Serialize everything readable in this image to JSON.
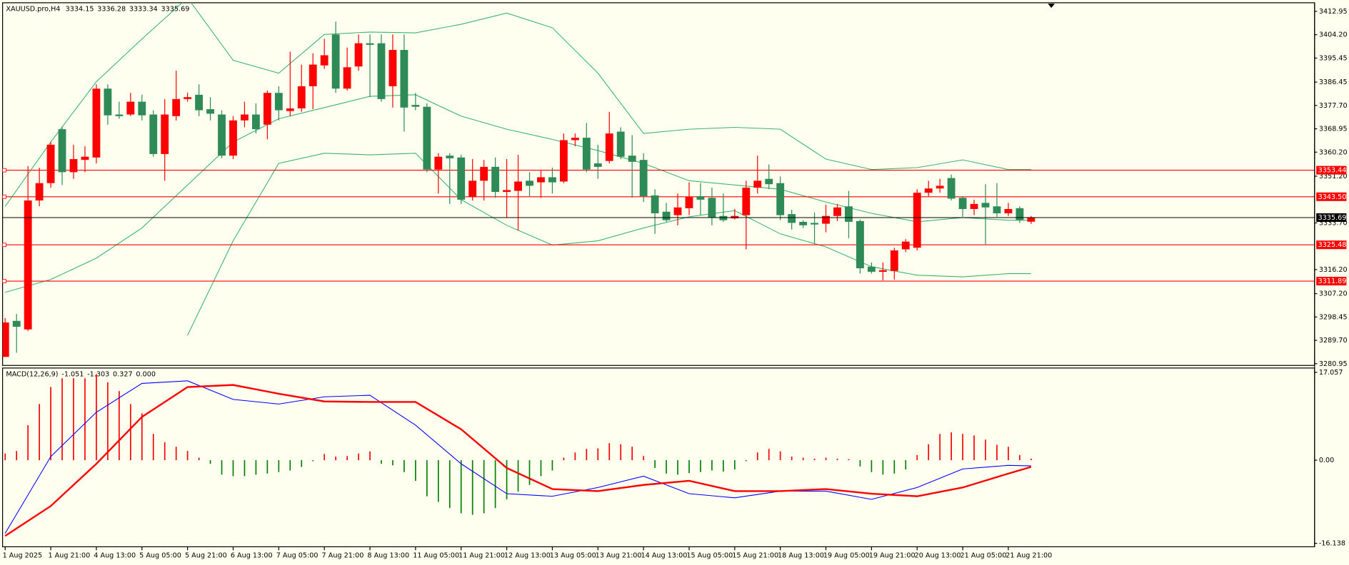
{
  "chart_data": [
    {
      "type": "candlestick",
      "symbol": "XAUUSD.pro,H4",
      "categories": [
        "1 Aug 2025",
        null,
        null,
        null,
        "1 Aug 21:00",
        null,
        null,
        null,
        "4 Aug 13:00",
        null,
        null,
        null,
        "5 Aug 05:00",
        null,
        null,
        null,
        "5 Aug 21:00",
        null,
        null,
        null,
        "6 Aug 13:00",
        null,
        null,
        null,
        "7 Aug 05:00",
        null,
        null,
        null,
        "7 Aug 21:00",
        null,
        null,
        null,
        "8 Aug 13:00",
        null,
        null,
        null,
        "11 Aug 05:00",
        null,
        null,
        null,
        "11 Aug 21:00",
        null,
        null,
        null,
        "12 Aug 13:00",
        null,
        null,
        null,
        "13 Aug 05:00",
        null,
        null,
        null,
        "13 Aug 21:00",
        null,
        null,
        null,
        "14 Aug 13:00",
        null,
        null,
        null,
        "15 Aug 05:00",
        null,
        null,
        null,
        "15 Aug 21:00",
        null,
        null,
        null,
        "18 Aug 13:00",
        null,
        null,
        null,
        "19 Aug 05:00",
        null,
        null,
        null,
        "19 Aug 21:00",
        null,
        null,
        null,
        "20 Aug 13:00",
        null,
        null,
        null,
        "21 Aug 05:00",
        null,
        null,
        null,
        "21 Aug 21:00",
        null,
        null
      ],
      "open": [
        3283.5,
        3297.0,
        3293.8,
        3342.1,
        3348.6,
        3368.8,
        3352.7,
        3357.3,
        3358.2,
        3384.0,
        3374.3,
        3374.3,
        3379.1,
        3374.3,
        3359.5,
        3373.7,
        3380.1,
        3381.7,
        3376.3,
        3374.3,
        3358.9,
        3372.1,
        3374.3,
        3370.5,
        3382.4,
        3375.6,
        3376.6,
        3384.9,
        3392.7,
        3404.3,
        3384.0,
        3392.3,
        3401.0,
        3401.0,
        3384.9,
        3398.5,
        3377.9,
        3377.2,
        3353.7,
        3358.9,
        3358.2,
        3343.4,
        3349.5,
        3354.7,
        3345.3,
        3345.7,
        3349.5,
        3348.9,
        3350.8,
        3349.2,
        3364.7,
        3365.6,
        3356.0,
        3356.9,
        3367.9,
        3358.9,
        3357.3,
        3344.0,
        3337.9,
        3336.6,
        3339.2,
        3343.7,
        3343.1,
        3336.3,
        3335.4,
        3336.6,
        3346.9,
        3350.2,
        3348.6,
        3337.0,
        3334.1,
        3333.7,
        3333.4,
        3336.3,
        3339.9,
        3334.4,
        3317.3,
        3315.4,
        3315.7,
        3323.8,
        3324.4,
        3345.0,
        3346.6,
        3350.5,
        3343.1,
        3338.9,
        3341.2,
        3339.9,
        3337.3,
        3339.2,
        3334.15
      ],
      "high": [
        3298.0,
        3299.6,
        3355.0,
        3354.4,
        3364.0,
        3369.5,
        3363.0,
        3362.4,
        3385.6,
        3385.6,
        3379.1,
        3382.4,
        3381.7,
        3375.9,
        3380.1,
        3390.7,
        3382.4,
        3385.6,
        3380.8,
        3375.9,
        3373.7,
        3379.1,
        3378.5,
        3383.3,
        3384.9,
        3397.8,
        3393.0,
        3397.2,
        3402.6,
        3409.1,
        3399.4,
        3404.3,
        3404.3,
        3404.3,
        3404.3,
        3404.3,
        3382.4,
        3378.5,
        3359.8,
        3359.8,
        3359.2,
        3357.6,
        3357.3,
        3358.2,
        3357.6,
        3359.2,
        3352.7,
        3353.4,
        3354.4,
        3367.2,
        3367.2,
        3371.1,
        3363.0,
        3375.3,
        3369.5,
        3366.6,
        3359.8,
        3346.3,
        3341.2,
        3344.7,
        3348.9,
        3348.6,
        3346.9,
        3344.7,
        3338.9,
        3349.5,
        3358.9,
        3355.6,
        3351.1,
        3338.6,
        3334.7,
        3337.6,
        3340.5,
        3340.8,
        3345.7,
        3335.0,
        3318.9,
        3318.9,
        3324.4,
        3327.6,
        3346.3,
        3349.5,
        3350.2,
        3351.8,
        3343.7,
        3342.4,
        3348.2,
        3348.6,
        3341.2,
        3339.9,
        3336.28
      ],
      "low": [
        3283.5,
        3285.1,
        3293.2,
        3339.9,
        3346.9,
        3347.9,
        3350.2,
        3352.7,
        3356.0,
        3370.5,
        3372.7,
        3373.7,
        3372.1,
        3358.5,
        3349.5,
        3372.1,
        3379.1,
        3373.7,
        3372.1,
        3357.9,
        3357.6,
        3369.5,
        3367.2,
        3365.0,
        3372.1,
        3373.7,
        3375.3,
        3376.3,
        3391.4,
        3382.4,
        3383.3,
        3390.7,
        3380.8,
        3379.1,
        3376.9,
        3367.9,
        3375.9,
        3352.7,
        3344.7,
        3340.8,
        3340.8,
        3342.1,
        3342.1,
        3343.1,
        3335.7,
        3330.8,
        3343.7,
        3343.1,
        3344.7,
        3348.6,
        3362.4,
        3352.7,
        3350.2,
        3356.0,
        3357.6,
        3343.1,
        3341.5,
        3329.6,
        3334.1,
        3332.8,
        3336.6,
        3336.6,
        3332.8,
        3334.1,
        3335.0,
        3323.8,
        3344.7,
        3346.3,
        3334.7,
        3331.2,
        3331.8,
        3326.0,
        3330.2,
        3334.4,
        3328.0,
        3314.7,
        3314.7,
        3312.2,
        3312.5,
        3322.8,
        3323.4,
        3343.7,
        3345.0,
        3342.1,
        3336.0,
        3336.6,
        3325.4,
        3336.0,
        3336.3,
        3333.7,
        3333.34
      ],
      "close": [
        3296.4,
        3294.8,
        3342.1,
        3348.6,
        3363.0,
        3352.7,
        3357.6,
        3358.5,
        3384.0,
        3374.0,
        3373.7,
        3379.1,
        3374.0,
        3359.5,
        3374.3,
        3380.1,
        3380.8,
        3375.9,
        3374.6,
        3358.9,
        3372.1,
        3374.3,
        3368.8,
        3382.4,
        3375.9,
        3376.6,
        3384.9,
        3393.0,
        3396.5,
        3384.0,
        3392.0,
        3401.0,
        3400.4,
        3380.1,
        3398.5,
        3376.9,
        3377.2,
        3353.7,
        3358.5,
        3357.9,
        3342.4,
        3349.5,
        3354.7,
        3345.3,
        3346.0,
        3349.2,
        3347.6,
        3350.8,
        3348.9,
        3364.7,
        3365.6,
        3353.7,
        3354.7,
        3367.2,
        3358.5,
        3356.6,
        3343.7,
        3337.3,
        3334.7,
        3339.5,
        3343.4,
        3342.4,
        3335.7,
        3334.7,
        3336.3,
        3346.9,
        3349.5,
        3348.2,
        3336.6,
        3333.7,
        3332.8,
        3333.1,
        3336.3,
        3339.5,
        3334.1,
        3316.7,
        3315.4,
        3316.0,
        3323.4,
        3326.7,
        3345.0,
        3346.6,
        3347.6,
        3342.8,
        3338.9,
        3340.8,
        3339.5,
        3337.3,
        3338.9,
        3334.7,
        3335.69
      ],
      "up_color": "#ff0000",
      "down_color": "#2e8b57",
      "ylim": [
        3280.95,
        3412.95
      ],
      "yticks": [
        3412.95,
        {
          "value": 3404.2,
          "label": "3404.20"
        },
        3395.45,
        3386.45,
        {
          "value": 3377.7,
          "label": "3377.70"
        },
        3368.95,
        {
          "value": 3360.2,
          "label": "3360.20"
        },
        {
          "value": 3351.2,
          "label": "3351.20"
        },
        {
          "value": 3333.7,
          "label": "3333.70"
        },
        {
          "value": 3316.2,
          "label": "3316.20"
        },
        {
          "value": 3307.2,
          "label": "3307.20"
        },
        3298.45,
        {
          "value": 3289.7,
          "label": "3289.70"
        },
        3280.95
      ],
      "levels": [
        3353.44,
        {
          "value": 3343.5,
          "label": "3343.50"
        },
        3325.48,
        3311.89
      ],
      "level_color": "#ff0000",
      "bands": {
        "color": "#3cb371",
        "x": [
          0,
          4,
          8,
          12,
          16,
          20,
          24,
          28,
          32,
          36,
          40,
          44,
          48,
          52,
          56,
          60,
          64,
          68,
          72,
          76,
          80,
          84,
          88,
          90
        ],
        "series": [
          {
            "values": [
              3339.9,
              3364.0,
              3386.6,
              3402.6,
              3418.0,
              3394.6,
              3389.8,
              3404.3,
              3405.2,
              3404.9,
              3408.1,
              3412.3,
              3406.8,
              3389.8,
              3367.2,
              3368.8,
              3369.5,
              3368.8,
              3357.6,
              3353.7,
              3354.4,
              3357.3,
              3353.7,
              3353.7
            ]
          },
          {
            "values": [
              3307.7,
              3312.5,
              3320.5,
              3331.8,
              3347.9,
              3364.0,
              3372.7,
              3376.9,
              3381.1,
              3381.7,
              3373.7,
              3368.8,
              3365.0,
              3360.8,
              3356.0,
              3349.5,
              3347.9,
              3346.3,
              3341.5,
              3337.3,
              3334.1,
              3335.7,
              3334.7,
              3334.7
            ]
          },
          {
            "values": [
              null,
              null,
              null,
              null,
              3291.6,
              3327.0,
              3356.0,
              3359.8,
              3359.2,
              3359.8,
              3342.4,
              3332.8,
              3325.4,
              3327.0,
              3331.8,
              3336.0,
              3338.3,
              3329.6,
              3324.7,
              3317.3,
              3314.1,
              3313.5,
              3314.7,
              3314.7
            ]
          }
        ]
      }
    },
    {
      "type": "macd",
      "title": "MACD(12,26,9)",
      "readout": [
        -1.051,
        -1.303,
        0.327,
        {
          "value": 0,
          "label": "0.000"
        }
      ],
      "histogram": [
        1.3,
        1.8,
        6.8,
        10.9,
        14.2,
        15.9,
        15.9,
        15.9,
        16.7,
        15.1,
        13.4,
        10.9,
        9.1,
        5.1,
        3.5,
        2.6,
        1.8,
        0.5,
        -0.7,
        -2.8,
        -3.1,
        -3.1,
        -2.8,
        -2.6,
        -2.3,
        -2.0,
        -1.3,
        -0.2,
        1.2,
        0.7,
        0.8,
        1.3,
        1.7,
        -0.7,
        -1.0,
        -2.3,
        -4.0,
        -7.0,
        -8.1,
        -9.3,
        -10.3,
        -10.6,
        -10.3,
        -9.3,
        -7.6,
        -6.1,
        -4.8,
        -3.1,
        -2.0,
        0.5,
        1.5,
        2.2,
        2.3,
        3.3,
        3.1,
        2.6,
        0.8,
        -1.5,
        -2.6,
        -2.8,
        -2.5,
        -2.3,
        -2.0,
        -2.2,
        -1.8,
        -0.2,
        1.5,
        2.2,
        1.7,
        0.7,
        0.5,
        0.3,
        0.5,
        0.3,
        0.2,
        -1.2,
        -2.3,
        -2.8,
        -2.6,
        -1.8,
        1.0,
        3.1,
        5.1,
        5.4,
        5.1,
        4.8,
        4.0,
        3.0,
        2.6,
        1.0,
        0.3
      ],
      "up_color": "#ff0000",
      "down_color": "#008000",
      "x": [
        0,
        4,
        8,
        12,
        16,
        20,
        24,
        28,
        32,
        36,
        40,
        44,
        48,
        52,
        56,
        60,
        64,
        68,
        72,
        76,
        80,
        84,
        88,
        90
      ],
      "lines": [
        {
          "color": "#0000ff",
          "values": [
            -14.2,
            0.7,
            9.3,
            14.9,
            15.4,
            11.8,
            10.9,
            12.3,
            12.6,
            6.8,
            -0.7,
            -6.5,
            -7.0,
            -5.3,
            -3.1,
            -6.5,
            -7.3,
            -6.0,
            -6.0,
            -7.6,
            -5.3,
            -1.7,
            -1.0,
            -1.1
          ]
        },
        {
          "color": "#ff0000",
          "values": [
            -14.7,
            -8.9,
            -0.7,
            8.4,
            14.2,
            14.6,
            12.9,
            11.4,
            11.3,
            11.3,
            6.0,
            -1.5,
            -5.6,
            -6.0,
            -4.8,
            -4.0,
            -6.0,
            -6.0,
            -5.6,
            -6.5,
            -7.0,
            -5.3,
            -2.6,
            -1.3
          ]
        }
      ],
      "ylim": [
        -16.138,
        17.057
      ],
      "yticks": [
        17.057,
        {
          "value": 0,
          "label": "0.00"
        },
        -16.138
      ]
    }
  ]
}
